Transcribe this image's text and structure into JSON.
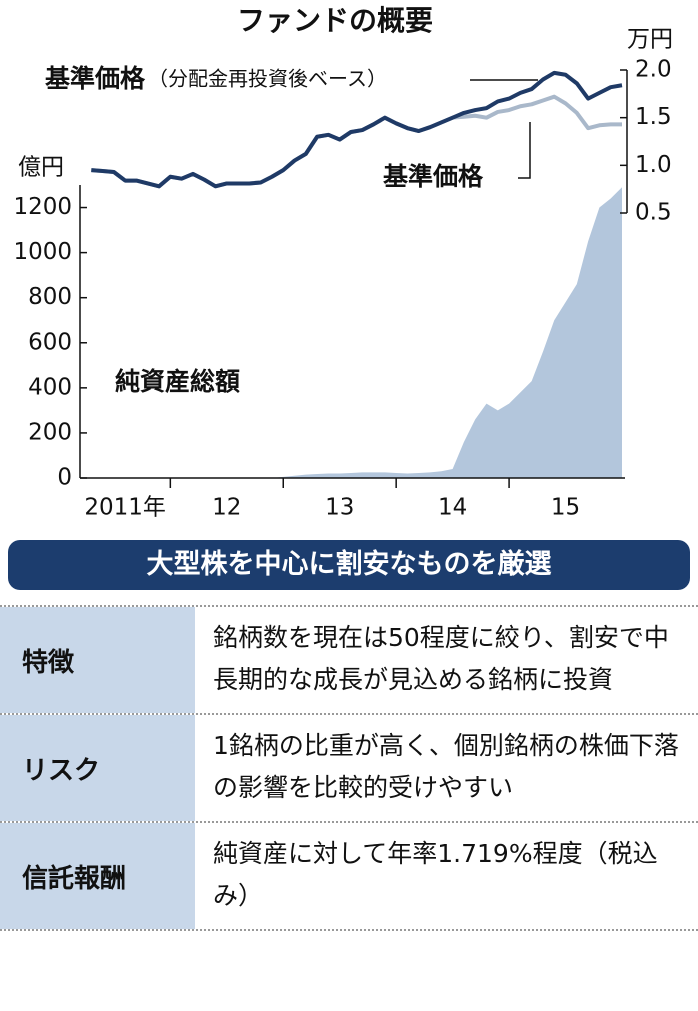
{
  "chart_data": {
    "type": "line",
    "title": "ファンドの概要",
    "y_unit": "億円",
    "y2_unit": "万円",
    "xlim": [
      2011.2,
      2016.0
    ],
    "xticks": [
      2012,
      2013,
      2014,
      2015
    ],
    "categories": [
      "2011年",
      "12",
      "13",
      "14",
      "15"
    ],
    "ylim": [
      0,
      1300
    ],
    "yticks": [
      0,
      200,
      400,
      600,
      800,
      1000,
      1200
    ],
    "y2lim": [
      0.5,
      2.0
    ],
    "y2ticks": [
      0.5,
      {
        "value": 1,
        "label": "1.0"
      },
      1.5,
      {
        "value": 2,
        "label": "2.0"
      }
    ],
    "x": [
      2011.3,
      2011.4,
      2011.5,
      2011.6,
      2011.7,
      2011.8,
      2011.9,
      2012.0,
      2012.1,
      2012.2,
      2012.3,
      2012.4,
      2012.5,
      2012.6,
      2012.7,
      2012.8,
      2012.9,
      2013.0,
      2013.1,
      2013.2,
      2013.3,
      2013.4,
      2013.5,
      2013.6,
      2013.7,
      2013.8,
      2013.9,
      2014.0,
      2014.1,
      2014.2,
      2014.3,
      2014.4,
      2014.5,
      2014.6,
      2014.7,
      2014.8,
      2014.9,
      2015.0,
      2015.1,
      2015.2,
      2015.3,
      2015.4,
      2015.5,
      2015.6,
      2015.7,
      2015.8,
      2015.9,
      2016.0
    ],
    "series": [
      {
        "name": "純資産総額",
        "type": "area",
        "axis": "y",
        "color": "#b3c6dc",
        "values": [
          0,
          0,
          0,
          0,
          0,
          0,
          0,
          0,
          0,
          0,
          0,
          0,
          0,
          0,
          0,
          0,
          0,
          5,
          10,
          15,
          18,
          20,
          20,
          22,
          25,
          25,
          25,
          22,
          20,
          22,
          25,
          30,
          40,
          160,
          260,
          330,
          300,
          330,
          380,
          430,
          560,
          700,
          780,
          860,
          1050,
          1200,
          1240,
          1290
        ]
      },
      {
        "name": "基準価格",
        "type": "line",
        "axis": "y2",
        "color": "#a9b8ca",
        "values": [
          0.95,
          0.94,
          0.93,
          0.84,
          0.84,
          0.81,
          0.78,
          0.88,
          0.86,
          0.91,
          0.85,
          0.78,
          0.81,
          0.81,
          0.81,
          0.82,
          0.88,
          0.95,
          1.05,
          1.12,
          1.3,
          1.32,
          1.27,
          1.35,
          1.37,
          1.43,
          1.5,
          1.44,
          1.39,
          1.36,
          1.4,
          1.45,
          1.5,
          1.51,
          1.52,
          1.5,
          1.56,
          1.58,
          1.62,
          1.64,
          1.68,
          1.72,
          1.65,
          1.55,
          1.39,
          1.42,
          1.43,
          1.43
        ]
      },
      {
        "name": "基準価格",
        "note": "（分配金再投資後ベース）",
        "type": "line",
        "axis": "y2",
        "color": "#1f3a66",
        "values": [
          0.95,
          0.94,
          0.93,
          0.84,
          0.84,
          0.81,
          0.78,
          0.88,
          0.86,
          0.91,
          0.85,
          0.78,
          0.81,
          0.81,
          0.81,
          0.82,
          0.88,
          0.95,
          1.05,
          1.12,
          1.3,
          1.32,
          1.27,
          1.35,
          1.37,
          1.43,
          1.5,
          1.44,
          1.39,
          1.36,
          1.4,
          1.45,
          1.5,
          1.55,
          1.58,
          1.6,
          1.67,
          1.7,
          1.76,
          1.8,
          1.9,
          1.97,
          1.95,
          1.86,
          1.7,
          1.76,
          1.82,
          1.84
        ]
      }
    ]
  },
  "banner": "大型株を中心に割安なものを厳選",
  "table": {
    "rows": [
      [
        "特徴",
        "銘柄数を現在は50程度に絞り、割安で中長期的な成長が見込める銘柄に投資"
      ],
      [
        "リスク",
        "1銘柄の比重が高く、個別銘柄の株価下落の影響を比較的受けやすい"
      ],
      [
        "信託報酬",
        "純資産に対して年率1.719%程度（税込み）"
      ]
    ]
  }
}
